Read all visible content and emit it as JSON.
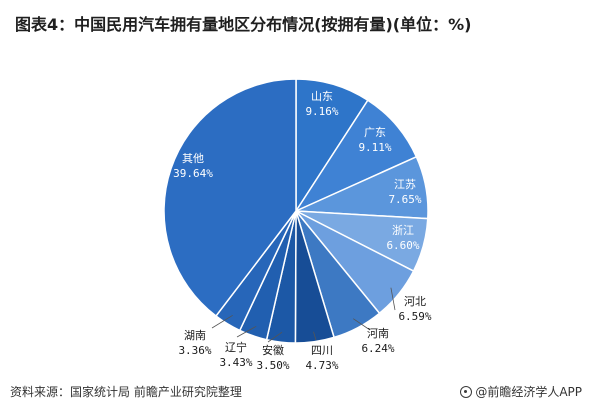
{
  "page": {
    "title": "图表4：中国民用汽车拥有量地区分布情况(按拥有量)(单位：%)",
    "footer_source": "资料来源：国家统计局 前瞻产业研究院整理",
    "footer_brand": "@前瞻经济学人APP"
  },
  "chart_data": {
    "type": "pie",
    "title": "图表4：中国民用汽车拥有量地区分布情况(按拥有量)(单位：%)",
    "unit": "%",
    "slices": [
      {
        "name": "山东",
        "value": 9.16,
        "label": "9.16%",
        "color": "#2e75c9"
      },
      {
        "name": "广东",
        "value": 9.11,
        "label": "9.11%",
        "color": "#3f82d4"
      },
      {
        "name": "江苏",
        "value": 7.65,
        "label": "7.65%",
        "color": "#5b96dc"
      },
      {
        "name": "浙江",
        "value": 6.6,
        "label": "6.60%",
        "color": "#7aa9e2"
      },
      {
        "name": "河北",
        "value": 6.59,
        "label": "6.59%",
        "color": "#6d9fdf"
      },
      {
        "name": "河南",
        "value": 6.24,
        "label": "6.24%",
        "color": "#3d79c3"
      },
      {
        "name": "四川",
        "value": 4.73,
        "label": "4.73%",
        "color": "#174d96"
      },
      {
        "name": "安徽",
        "value": 3.5,
        "label": "3.50%",
        "color": "#1c58a6"
      },
      {
        "name": "辽宁",
        "value": 3.43,
        "label": "3.43%",
        "color": "#215fb0"
      },
      {
        "name": "湖南",
        "value": 3.36,
        "label": "3.36%",
        "color": "#2766b9"
      },
      {
        "name": "其他",
        "value": 39.64,
        "label": "39.64%",
        "color": "#2c6dc2"
      }
    ]
  }
}
